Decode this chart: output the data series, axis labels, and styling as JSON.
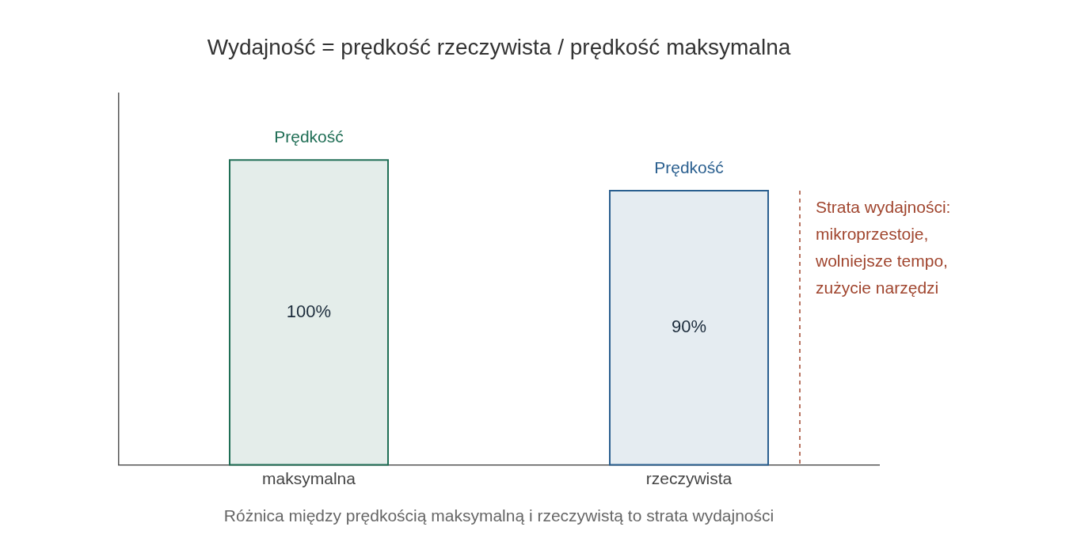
{
  "chart_data": {
    "type": "bar",
    "title": "Wydajność = prędkość rzeczywista / prędkość maksymalna",
    "xlabel": "Różnica między prędkością maksymalną i rzeczywistą to strata wydajności",
    "categories": [
      "maksymalna",
      "rzeczywista"
    ],
    "values": [
      100,
      90
    ],
    "colors": [
      "#1f6e55",
      "#2a5f8f"
    ],
    "value_labels": [
      "100%",
      "90%"
    ],
    "ylim": [
      0,
      122
    ],
    "tick_labels": "x",
    "legend": false,
    "annotations": [
      {
        "text": "Prędkość",
        "x": "maksymalna",
        "y": 100
      },
      {
        "text": "Prędkość",
        "x": "rzeczywista",
        "y": 90
      },
      "Strata wydajności:\nmikroprzestoje,\nwolniejsze tempo,\nzużycie narzędzi"
    ]
  }
}
